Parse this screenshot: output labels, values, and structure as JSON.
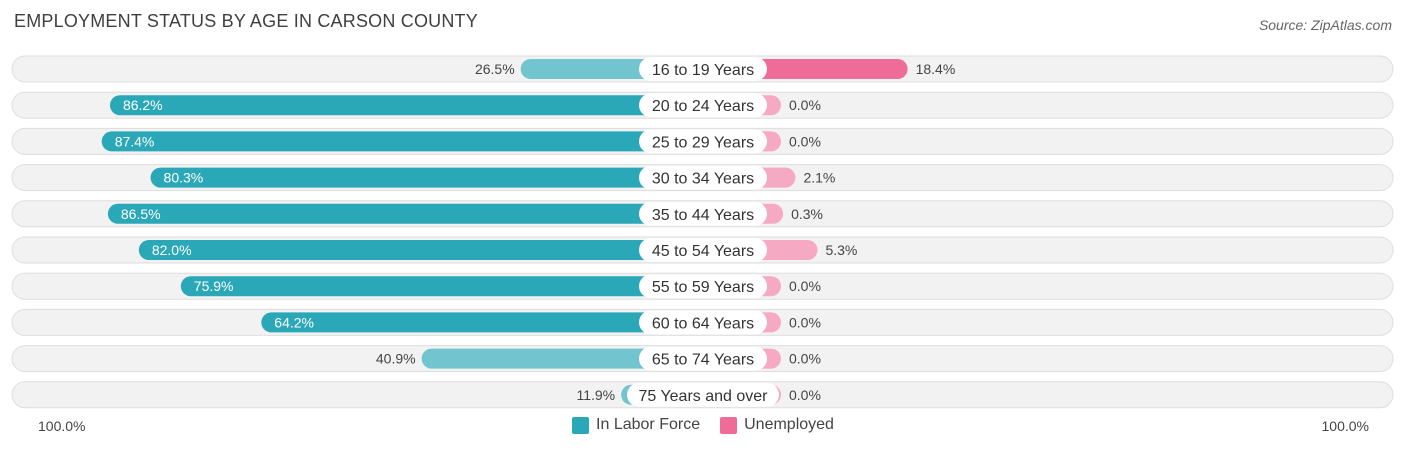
{
  "title": "EMPLOYMENT STATUS BY AGE IN CARSON COUNTY",
  "source": "Source: ZipAtlas.com",
  "axis": {
    "left_label": "100.0%",
    "right_label": "100.0%"
  },
  "legend": {
    "labor_force": "In Labor Force",
    "unemployed": "Unemployed"
  },
  "colors": {
    "labor_force_strong": "#2ba8b8",
    "labor_force_light": "#72c5cf",
    "unemployed_strong": "#f06c98",
    "unemployed_light": "#f5a9c3",
    "row_bg": "#f2f2f2",
    "row_border": "#dedede"
  },
  "chart_data": {
    "type": "bar",
    "orientation": "horizontal-diverging",
    "title": "EMPLOYMENT STATUS BY AGE IN CARSON COUNTY",
    "categories": [
      "16 to 19 Years",
      "20 to 24 Years",
      "25 to 29 Years",
      "30 to 34 Years",
      "35 to 44 Years",
      "45 to 54 Years",
      "55 to 59 Years",
      "60 to 64 Years",
      "65 to 74 Years",
      "75 Years and over"
    ],
    "series": [
      {
        "name": "In Labor Force",
        "values": [
          26.5,
          86.2,
          87.4,
          80.3,
          86.5,
          82.0,
          75.9,
          64.2,
          40.9,
          11.9
        ],
        "labels": [
          "26.5%",
          "86.2%",
          "87.4%",
          "80.3%",
          "86.5%",
          "82.0%",
          "75.9%",
          "64.2%",
          "40.9%",
          "11.9%"
        ]
      },
      {
        "name": "Unemployed",
        "values": [
          18.4,
          0.0,
          0.0,
          2.1,
          0.3,
          5.3,
          0.0,
          0.0,
          0.0,
          0.0
        ],
        "labels": [
          "18.4%",
          "0.0%",
          "0.0%",
          "2.1%",
          "0.3%",
          "5.3%",
          "0.0%",
          "0.0%",
          "0.0%",
          "0.0%"
        ]
      }
    ],
    "xlim": [
      -100,
      100
    ],
    "legend_position": "bottom-center"
  }
}
